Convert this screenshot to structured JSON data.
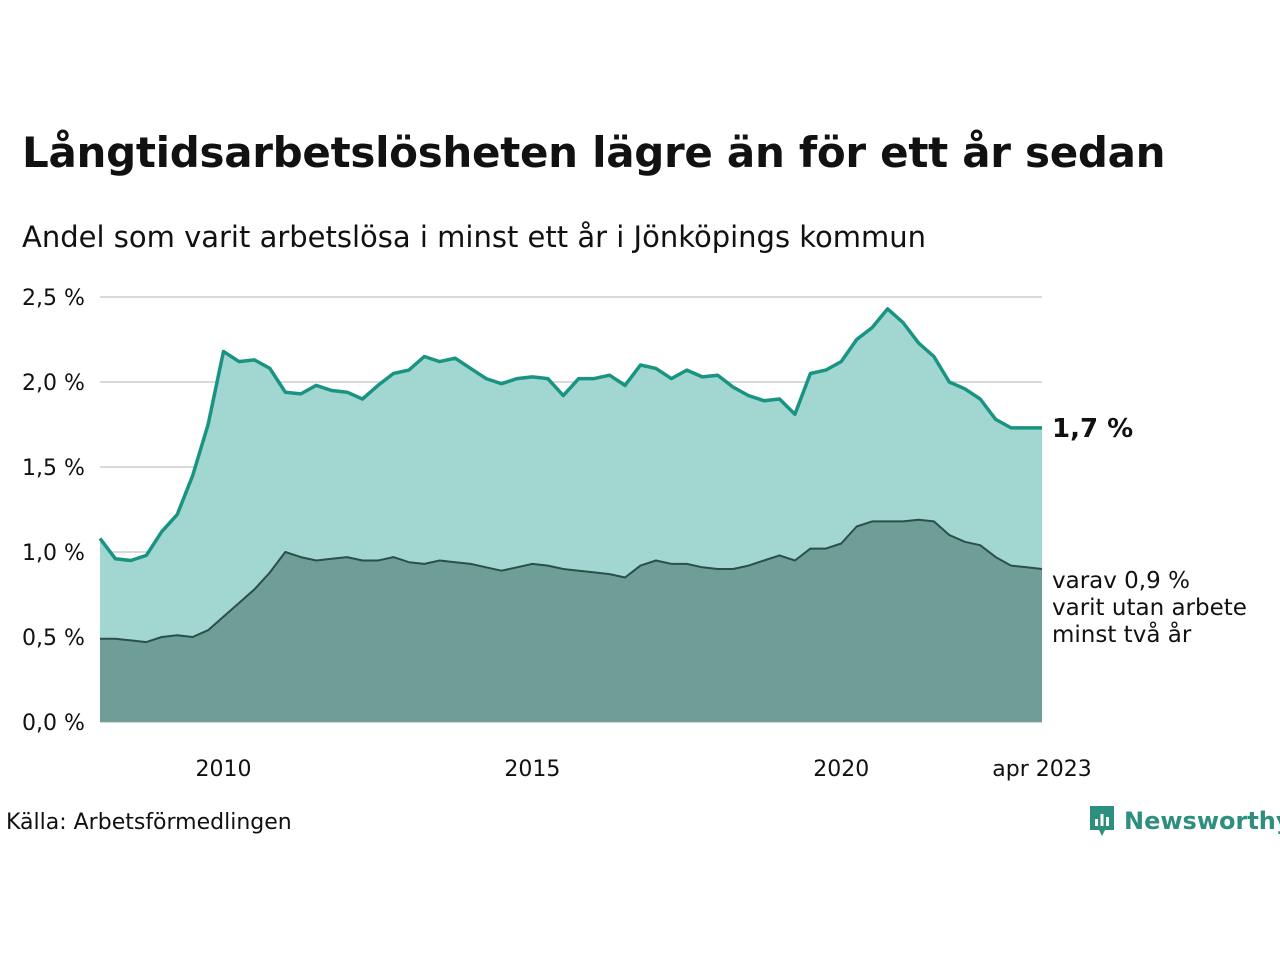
{
  "title": "Långtidsarbetslösheten lägre än för ett år sedan",
  "subtitle": "Andel som varit arbetslösa i minst ett år i Jönköpings kommun",
  "source": "Källa: Arbetsförmedlingen",
  "brand": {
    "name": "Newsworthy",
    "icon": "newsworthy-logo-icon",
    "color": "#2f8f7f"
  },
  "colors": {
    "series_1y_line": "#1a9482",
    "series_1y_fill": "#a2d6d1",
    "series_2y_line": "#2a4f4c",
    "series_2y_fill": "#6f9e97",
    "grid": "#d9d9d9"
  },
  "chart_data": {
    "type": "area",
    "title": "Långtidsarbetslösheten lägre än för ett år sedan",
    "subtitle": "Andel som varit arbetslösa i minst ett år i Jönköpings kommun",
    "ylim": [
      0,
      2.5
    ],
    "xlim": [
      "2008-01",
      "2023-04"
    ],
    "y_ticks": [
      {
        "value": 0.0,
        "label": "0,0 %"
      },
      {
        "value": 0.5,
        "label": "0,5 %"
      },
      {
        "value": 1.0,
        "label": "1,0 %"
      },
      {
        "value": 1.5,
        "label": "1,5 %"
      },
      {
        "value": 2.0,
        "label": "2,0 %"
      },
      {
        "value": 2.5,
        "label": "2,5 %"
      }
    ],
    "x_ticks": [
      {
        "value": "2010-01",
        "label": "2010"
      },
      {
        "value": "2015-01",
        "label": "2015"
      },
      {
        "value": "2020-01",
        "label": "2020"
      },
      {
        "value": "2023-04",
        "label": "apr 2023"
      }
    ],
    "grid": true,
    "x": [
      "2008-01",
      "2008-04",
      "2008-07",
      "2008-10",
      "2009-01",
      "2009-04",
      "2009-07",
      "2009-10",
      "2010-01",
      "2010-04",
      "2010-07",
      "2010-10",
      "2011-01",
      "2011-04",
      "2011-07",
      "2011-10",
      "2012-01",
      "2012-04",
      "2012-07",
      "2012-10",
      "2013-01",
      "2013-04",
      "2013-07",
      "2013-10",
      "2014-01",
      "2014-04",
      "2014-07",
      "2014-10",
      "2015-01",
      "2015-04",
      "2015-07",
      "2015-10",
      "2016-01",
      "2016-04",
      "2016-07",
      "2016-10",
      "2017-01",
      "2017-04",
      "2017-07",
      "2017-10",
      "2018-01",
      "2018-04",
      "2018-07",
      "2018-10",
      "2019-01",
      "2019-04",
      "2019-07",
      "2019-10",
      "2020-01",
      "2020-04",
      "2020-07",
      "2020-10",
      "2021-01",
      "2021-04",
      "2021-07",
      "2021-10",
      "2022-01",
      "2022-04",
      "2022-07",
      "2022-10",
      "2023-01",
      "2023-04"
    ],
    "series": [
      {
        "name": "",
        "values": [
          1.08,
          0.96,
          0.95,
          0.98,
          1.12,
          1.22,
          1.45,
          1.75,
          2.18,
          2.12,
          2.13,
          2.08,
          1.94,
          1.93,
          1.98,
          1.95,
          1.94,
          1.9,
          1.98,
          2.05,
          2.07,
          2.15,
          2.12,
          2.14,
          2.08,
          2.02,
          1.99,
          2.02,
          2.03,
          2.02,
          1.92,
          2.02,
          2.02,
          2.04,
          1.98,
          2.1,
          2.08,
          2.02,
          2.07,
          2.03,
          2.04,
          1.97,
          1.92,
          1.89,
          1.9,
          1.81,
          2.05,
          2.07,
          2.12,
          2.25,
          2.32,
          2.43,
          2.35,
          2.23,
          2.15,
          2.0,
          1.96,
          1.9,
          1.78,
          1.73,
          1.73,
          1.73
        ],
        "end_label": "1,7 %"
      },
      {
        "name": "",
        "values": [
          0.49,
          0.49,
          0.48,
          0.47,
          0.5,
          0.51,
          0.5,
          0.54,
          0.62,
          0.7,
          0.78,
          0.88,
          1.0,
          0.97,
          0.95,
          0.96,
          0.97,
          0.95,
          0.95,
          0.97,
          0.94,
          0.93,
          0.95,
          0.94,
          0.93,
          0.91,
          0.89,
          0.91,
          0.93,
          0.92,
          0.9,
          0.89,
          0.88,
          0.87,
          0.85,
          0.92,
          0.95,
          0.93,
          0.93,
          0.91,
          0.9,
          0.9,
          0.92,
          0.95,
          0.98,
          0.95,
          1.02,
          1.02,
          1.05,
          1.15,
          1.18,
          1.18,
          1.18,
          1.19,
          1.18,
          1.1,
          1.06,
          1.04,
          0.97,
          0.92,
          0.91,
          0.9
        ],
        "end_label": "varav 0,9 %\nvarit utan arbete\nminst två år"
      }
    ]
  }
}
